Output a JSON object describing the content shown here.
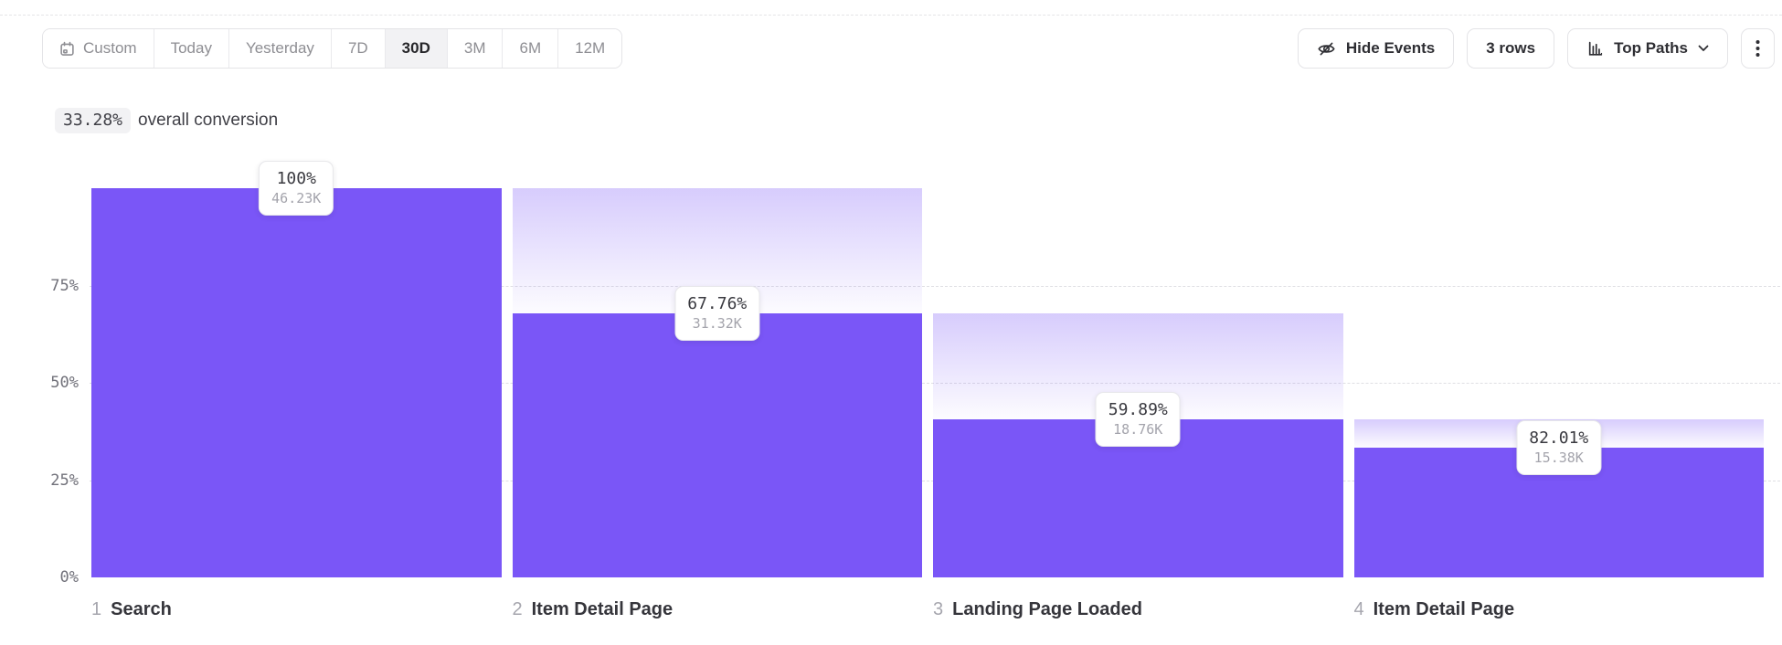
{
  "toolbar": {
    "date_ranges": [
      {
        "label": "Custom",
        "icon": "calendar-icon",
        "selected": false
      },
      {
        "label": "Today",
        "selected": false
      },
      {
        "label": "Yesterday",
        "selected": false
      },
      {
        "label": "7D",
        "selected": false
      },
      {
        "label": "30D",
        "selected": true
      },
      {
        "label": "3M",
        "selected": false
      },
      {
        "label": "6M",
        "selected": false
      },
      {
        "label": "12M",
        "selected": false
      }
    ],
    "hide_events_label": "Hide Events",
    "rows_label": "3 rows",
    "top_paths_label": "Top Paths"
  },
  "summary": {
    "conversion_value": "33.28%",
    "conversion_label": "overall conversion"
  },
  "chart_data": {
    "type": "bar",
    "subtype": "funnel",
    "title": "",
    "xlabel": "",
    "ylabel": "",
    "ylim": [
      0,
      100
    ],
    "yticks": [
      0,
      25,
      50,
      75
    ],
    "ytick_labels": [
      "0%",
      "25%",
      "50%",
      "75%"
    ],
    "grid": "dashed horizontal",
    "categories": [
      "Search",
      "Item Detail Page",
      "Landing Page Loaded",
      "Item Detail Page"
    ],
    "steps": [
      {
        "step": 1,
        "event": "Search",
        "pct_label": "100%",
        "count_label": "46.23K",
        "count": 46230
      },
      {
        "step": 2,
        "event": "Item Detail Page",
        "pct_label": "67.76%",
        "count_label": "31.32K",
        "count": 31320
      },
      {
        "step": 3,
        "event": "Landing Page Loaded",
        "pct_label": "59.89%",
        "count_label": "18.76K",
        "count": 18760
      },
      {
        "step": 4,
        "event": "Item Detail Page",
        "pct_label": "82.01%",
        "count_label": "15.38K",
        "count": 15380
      }
    ],
    "colors": {
      "bar": "#7A56F7",
      "gradient_top": "rgba(122,86,247,0.30)",
      "gradient_bottom": "rgba(122,86,247,0.02)"
    }
  }
}
